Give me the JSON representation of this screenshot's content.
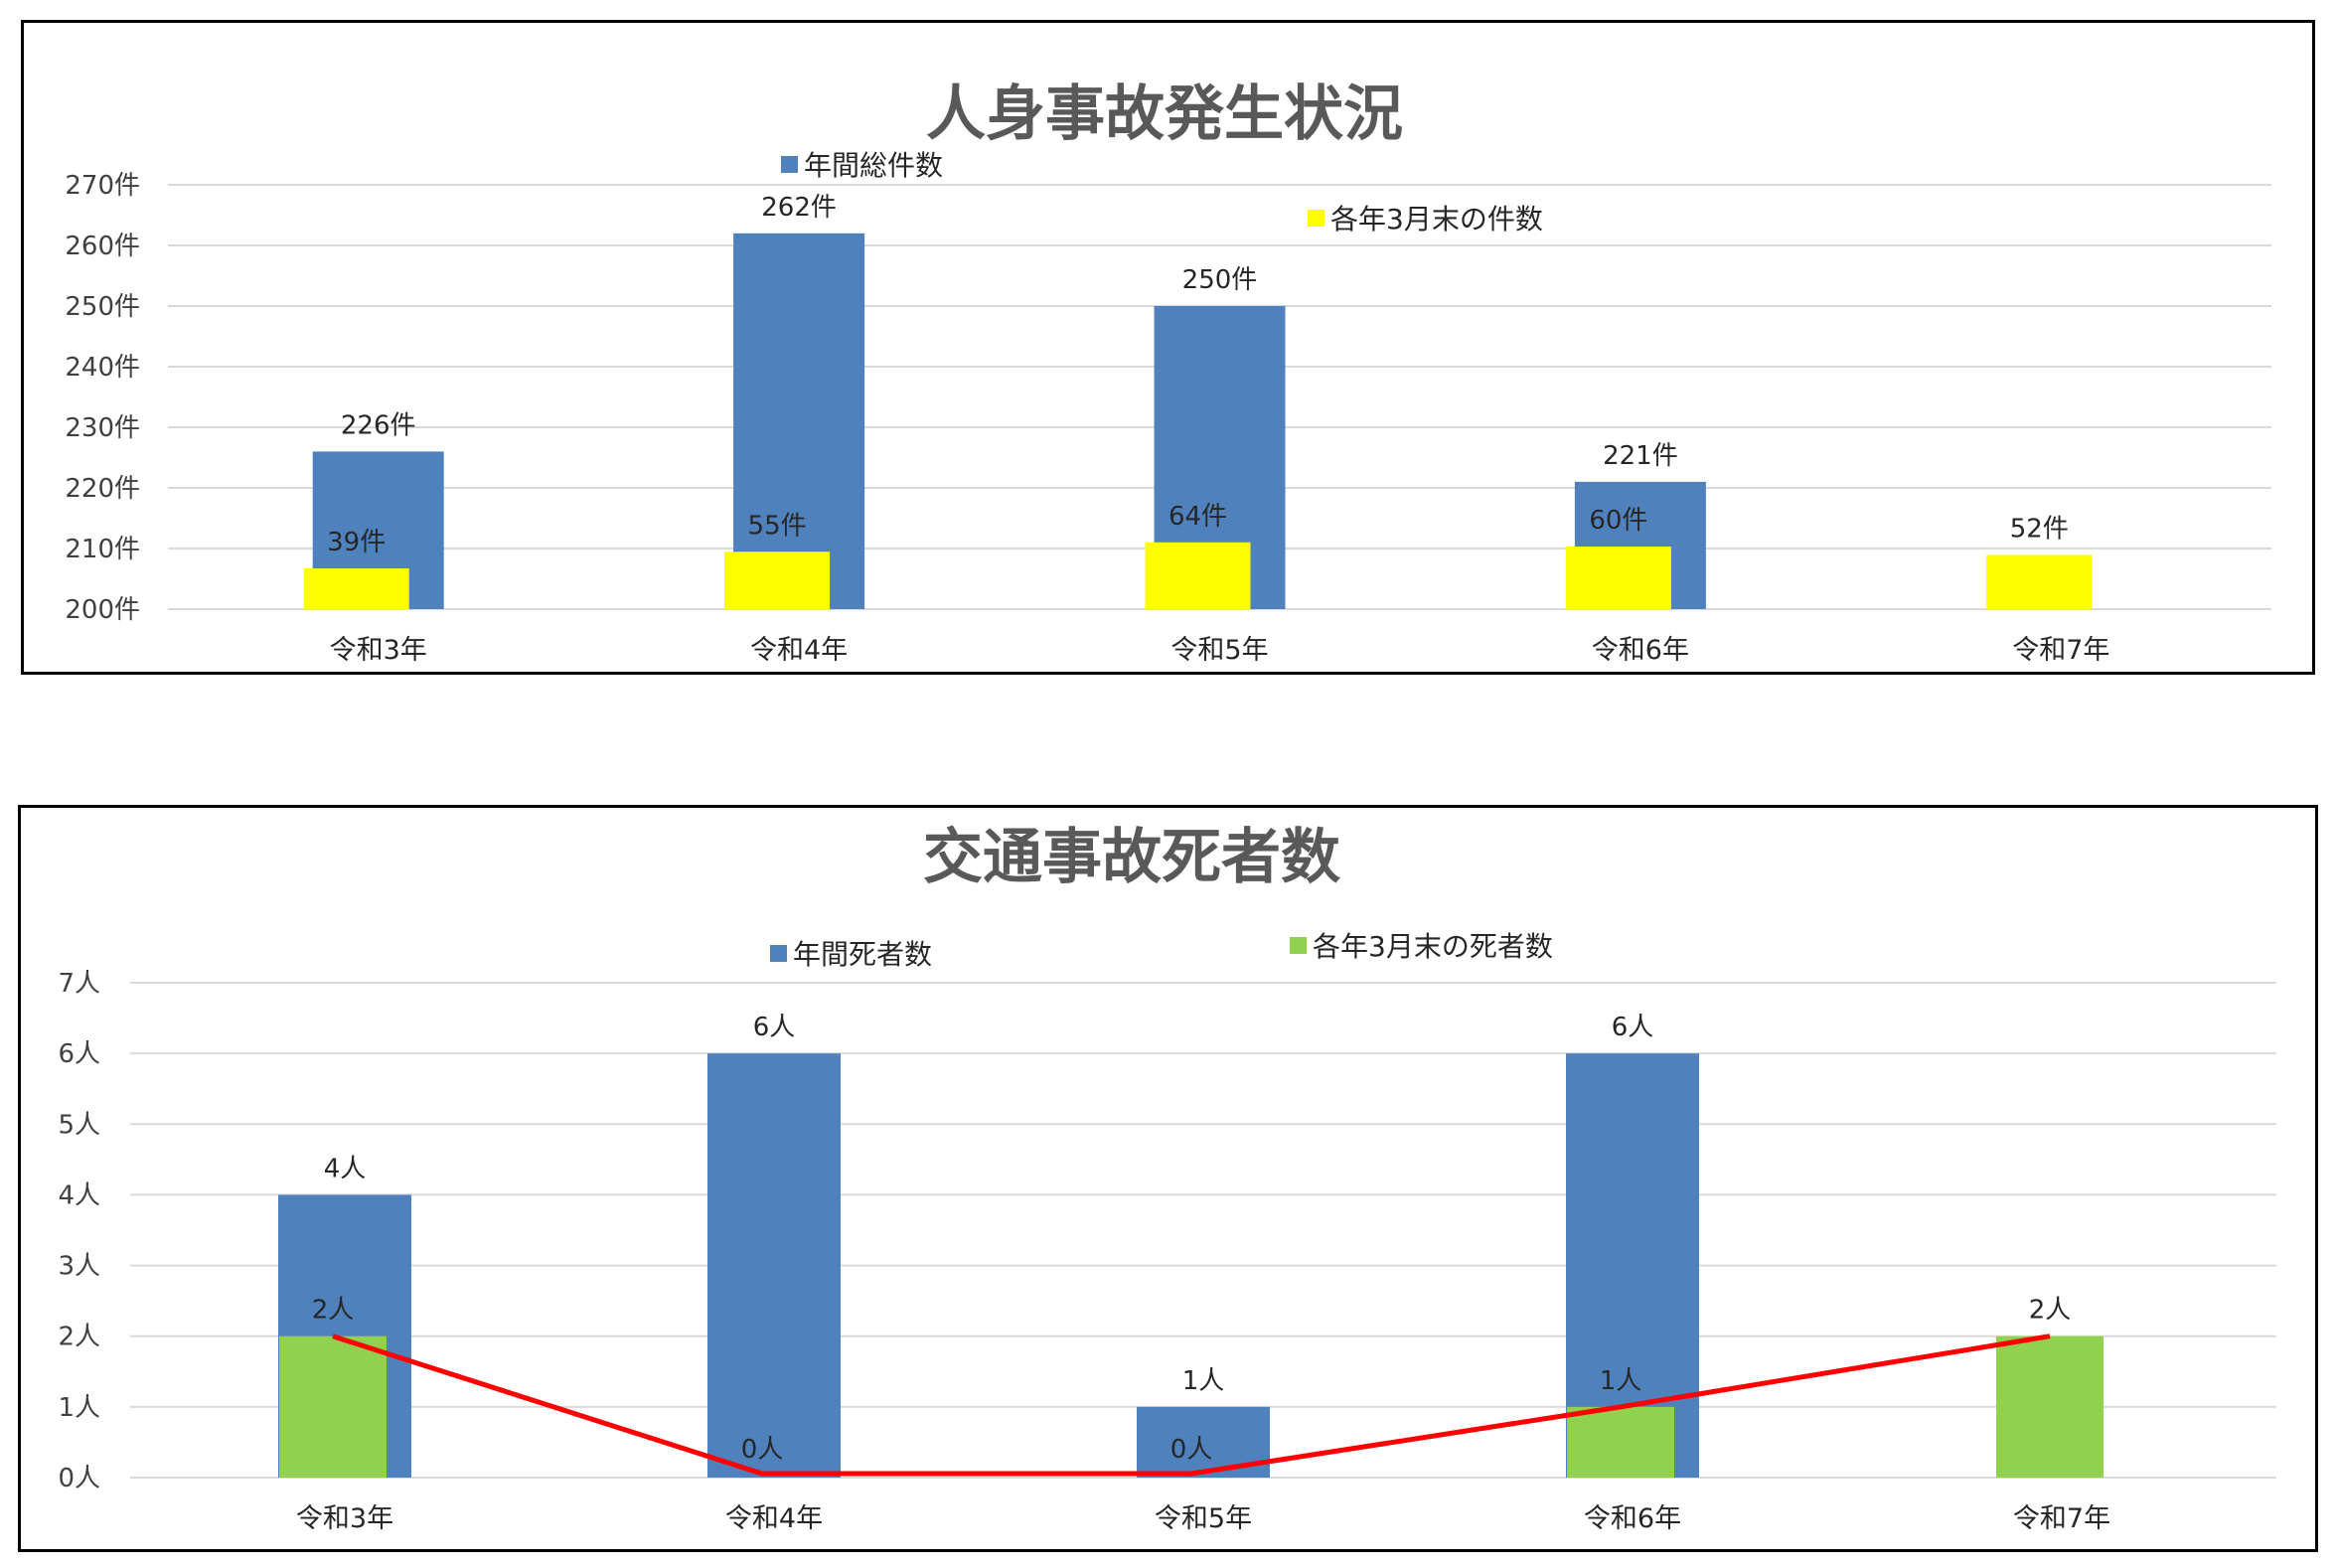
{
  "chart_data": [
    {
      "type": "bar",
      "title": "人身事故発生状況",
      "categories": [
        "令和3年",
        "令和4年",
        "令和5年",
        "令和6年",
        "令和7年"
      ],
      "ylim": [
        200,
        270
      ],
      "ytick_step": 10,
      "ytick_labels": [
        "200件",
        "210件",
        "220件",
        "230件",
        "240件",
        "250件",
        "260件",
        "270件"
      ],
      "grid": true,
      "series": [
        {
          "name": "年間総件数",
          "color": "#4f81bd",
          "values": [
            226,
            262,
            250,
            221,
            null
          ],
          "labels": [
            "226件",
            "262件",
            "250件",
            "221件",
            ""
          ]
        },
        {
          "name": "各年3月末の件数",
          "color": "#ffff00",
          "values": [
            39,
            55,
            64,
            60,
            52
          ],
          "labels": [
            "39件",
            "55件",
            "64件",
            "60件",
            "52件"
          ]
        }
      ]
    },
    {
      "type": "bar",
      "title": "交通事故死者数",
      "categories": [
        "令和3年",
        "令和4年",
        "令和5年",
        "令和6年",
        "令和7年"
      ],
      "ylim": [
        0,
        7
      ],
      "ytick_step": 1,
      "ytick_labels": [
        "0人",
        "1人",
        "2人",
        "3人",
        "4人",
        "5人",
        "6人",
        "7人"
      ],
      "grid": true,
      "series": [
        {
          "name": "年間死者数",
          "color": "#4f81bd",
          "values": [
            4,
            6,
            1,
            6,
            null
          ],
          "labels": [
            "4人",
            "6人",
            "1人",
            "6人",
            ""
          ]
        },
        {
          "name": "各年3月末の死者数",
          "color": "#92d050",
          "values": [
            2,
            0,
            0,
            1,
            2
          ],
          "labels": [
            "2人",
            "0人",
            "0人",
            "1人",
            "2人"
          ]
        }
      ],
      "trend_line": {
        "color": "#ff0000",
        "values": [
          2,
          0,
          0,
          1,
          2
        ]
      }
    }
  ]
}
